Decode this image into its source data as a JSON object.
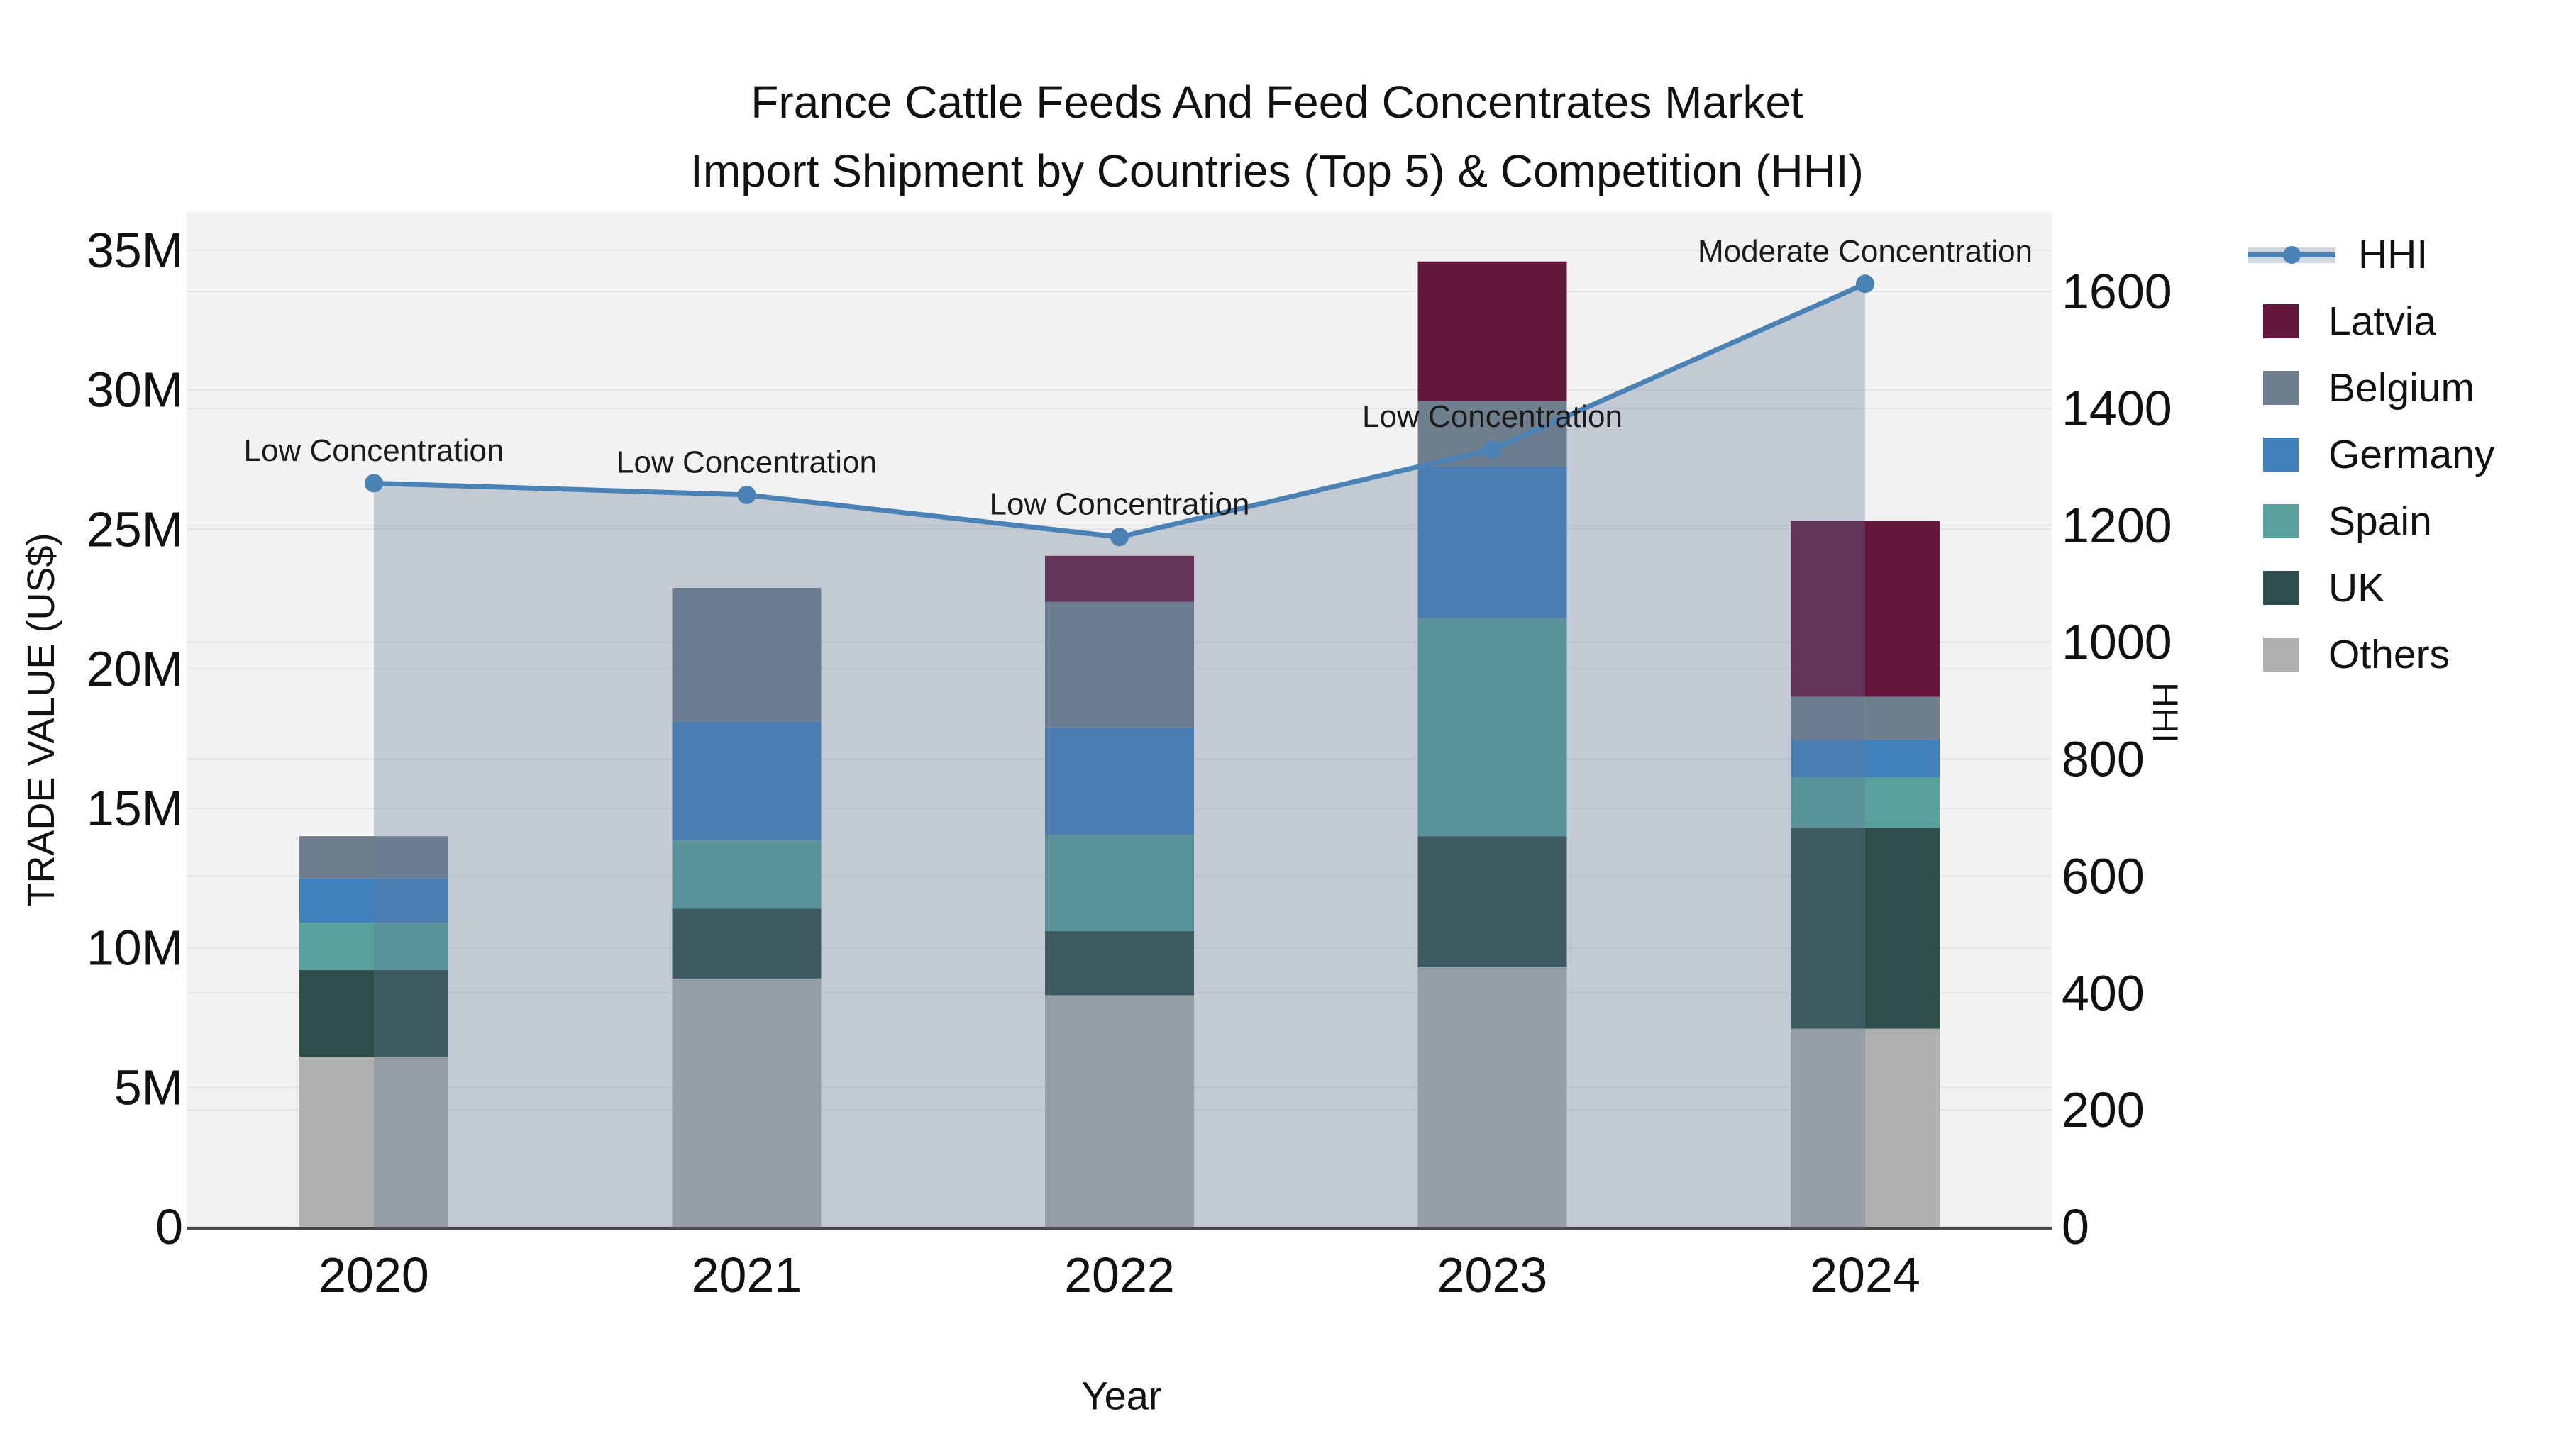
{
  "title": {
    "line1": "France Cattle Feeds And Feed Concentrates Market",
    "line2": "Import Shipment by Countries (Top 5) & Competition (HHI)"
  },
  "axes": {
    "x": {
      "title": "Year",
      "categories": [
        "2020",
        "2021",
        "2022",
        "2023",
        "2024"
      ]
    },
    "left": {
      "title": "TRADE VALUE (US$)",
      "tick_labels": [
        "0",
        "5M",
        "10M",
        "15M",
        "20M",
        "25M",
        "30M",
        "35M"
      ],
      "tick_values": [
        0,
        5,
        10,
        15,
        20,
        25,
        30,
        35
      ]
    },
    "right": {
      "title": "HHI",
      "tick_labels": [
        "0",
        "200",
        "400",
        "600",
        "800",
        "1000",
        "1200",
        "1400",
        "1600"
      ],
      "tick_values": [
        0,
        200,
        400,
        600,
        800,
        1000,
        1200,
        1400,
        1600
      ]
    }
  },
  "chart_data": {
    "type": "combo_stacked_bar_line_area",
    "categories": [
      "2020",
      "2021",
      "2022",
      "2023",
      "2024"
    ],
    "bar_value_unit": "million US$",
    "bar_stack_order_bottom_to_top": [
      "Others",
      "UK",
      "Spain",
      "Germany",
      "Belgium",
      "Latvia"
    ],
    "series": [
      {
        "name": "Others",
        "color": "#aeb0ad",
        "values": [
          6.1,
          8.9,
          8.3,
          9.3,
          7.1
        ]
      },
      {
        "name": "UK",
        "color": "#2d4e4a",
        "values": [
          3.1,
          2.5,
          2.3,
          4.7,
          7.2
        ]
      },
      {
        "name": "Spain",
        "color": "#58a19c",
        "values": [
          1.7,
          2.45,
          3.45,
          7.8,
          1.8
        ]
      },
      {
        "name": "Germany",
        "color": "#4081bd",
        "values": [
          1.6,
          4.25,
          3.85,
          5.45,
          1.35
        ]
      },
      {
        "name": "Belgium",
        "color": "#707f8e",
        "values": [
          1.5,
          4.8,
          4.5,
          2.35,
          1.55
        ]
      },
      {
        "name": "Latvia",
        "color": "#65163c",
        "values": [
          0,
          0,
          1.65,
          5.0,
          6.3
        ]
      }
    ],
    "bar_totals_millions": [
      14.0,
      22.9,
      24.05,
      34.6,
      25.3
    ],
    "line_series": {
      "name": "HHI",
      "axis": "right",
      "color": "#4a82b5",
      "area_fill": "rgba(100,118,149,0.32)",
      "values": [
        1272,
        1252,
        1180,
        1330,
        1613
      ]
    },
    "annotations": [
      {
        "category": "2020",
        "text": "Low Concentration"
      },
      {
        "category": "2021",
        "text": "Low Concentration"
      },
      {
        "category": "2022",
        "text": "Low Concentration"
      },
      {
        "category": "2023",
        "text": "Low Concentration"
      },
      {
        "category": "2024",
        "text": "Moderate Concentration"
      }
    ],
    "ylim_left_millions": [
      0,
      36.4
    ],
    "ylim_right": [
      0,
      1735
    ],
    "grid": true,
    "legend_position": "right",
    "plot_background": "#f2f2f2",
    "gridline_color": "#e3e3e3",
    "axis_line_color": "#4a4a4a",
    "text_color": "#111111"
  },
  "legend": {
    "items": [
      {
        "label": "HHI",
        "type": "line",
        "color": "#4a82b5",
        "band_color": "rgba(100,118,149,0.30)"
      },
      {
        "label": "Latvia",
        "type": "square",
        "color": "#65163c"
      },
      {
        "label": "Belgium",
        "type": "square",
        "color": "#707f8e"
      },
      {
        "label": "Germany",
        "type": "square",
        "color": "#4081bd"
      },
      {
        "label": "Spain",
        "type": "square",
        "color": "#58a19c"
      },
      {
        "label": "UK",
        "type": "square",
        "color": "#2d4e4a"
      },
      {
        "label": "Others",
        "type": "square",
        "color": "#aeb0ad"
      }
    ]
  }
}
